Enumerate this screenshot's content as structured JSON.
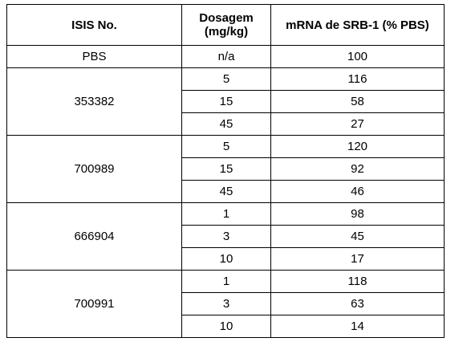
{
  "table": {
    "headers": {
      "isis": "ISIS No.",
      "dosage_line1": "Dosagem",
      "dosage_line2": "(mg/kg)",
      "mrna": "mRNA de SRB-1 (% PBS)"
    },
    "control": {
      "isis": "PBS",
      "dosage": "n/a",
      "mrna": "100"
    },
    "groups": [
      {
        "isis": "353382",
        "rows": [
          {
            "dosage": "5",
            "mrna": "116"
          },
          {
            "dosage": "15",
            "mrna": "58"
          },
          {
            "dosage": "45",
            "mrna": "27"
          }
        ]
      },
      {
        "isis": "700989",
        "rows": [
          {
            "dosage": "5",
            "mrna": "120"
          },
          {
            "dosage": "15",
            "mrna": "92"
          },
          {
            "dosage": "45",
            "mrna": "46"
          }
        ]
      },
      {
        "isis": "666904",
        "rows": [
          {
            "dosage": "1",
            "mrna": "98"
          },
          {
            "dosage": "3",
            "mrna": "45"
          },
          {
            "dosage": "10",
            "mrna": "17"
          }
        ]
      },
      {
        "isis": "700991",
        "rows": [
          {
            "dosage": "1",
            "mrna": "118"
          },
          {
            "dosage": "3",
            "mrna": "63"
          },
          {
            "dosage": "10",
            "mrna": "14"
          }
        ]
      }
    ]
  }
}
